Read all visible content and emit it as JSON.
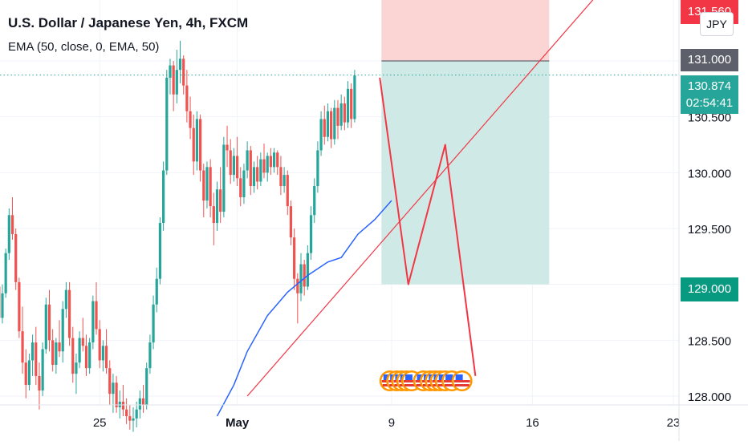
{
  "header": {
    "title": "U.S. Dollar / Japanese Yen, 4h, FXCM",
    "indicator": "EMA (50, close, 0, EMA, 50)",
    "currency_button": "JPY"
  },
  "price_tags": {
    "stop_loss": "131.560",
    "entry": "131.000",
    "current_price": "130.874",
    "countdown": "02:54:41",
    "target": "129.000"
  },
  "colors": {
    "up": "#26a69a",
    "down": "#ef5350",
    "ema": "#2962ff",
    "trendline": "#f23645",
    "projection": "#f23645",
    "stop_zone": "#fbd5d3",
    "target_zone": "#cfeae6",
    "current_line": "#26a69a",
    "entry_tag": "#5d606b",
    "flag_icon": "us-flag-event-icon"
  },
  "chart_data": {
    "type": "candlestick",
    "symbol": "U.S. Dollar / Japanese Yen",
    "interval": "4h",
    "ylim": [
      127.9,
      131.9
    ],
    "y_ticks": [
      "128.000",
      "128.500",
      "129.000",
      "129.500",
      "130.000",
      "130.500",
      "131.000"
    ],
    "x_ticks": [
      "25",
      "May",
      "9",
      "16",
      "23"
    ],
    "x_tick_index": [
      40,
      81,
      127,
      169,
      211
    ],
    "candles": [
      [
        129.03,
        129.28,
        128.95,
        129.15
      ],
      [
        129.15,
        129.42,
        129.08,
        129.35
      ],
      [
        129.35,
        129.48,
        128.98,
        129.05
      ],
      [
        129.05,
        129.18,
        128.52,
        128.62
      ],
      [
        128.62,
        128.7,
        128.3,
        128.4
      ],
      [
        128.4,
        128.52,
        128.1,
        128.2
      ],
      [
        128.2,
        128.62,
        128.15,
        128.55
      ],
      [
        128.55,
        128.88,
        128.48,
        128.8
      ],
      [
        128.8,
        129.1,
        128.75,
        129.02
      ],
      [
        129.02,
        129.25,
        128.92,
        128.98
      ],
      [
        128.98,
        129.03,
        128.62,
        128.7
      ],
      [
        128.7,
        129.0,
        128.65,
        128.92
      ],
      [
        128.92,
        129.32,
        128.88,
        129.28
      ],
      [
        129.28,
        129.68,
        129.22,
        129.62
      ],
      [
        129.62,
        129.78,
        129.4,
        129.45
      ],
      [
        129.45,
        129.5,
        128.95,
        129.02
      ],
      [
        129.02,
        129.06,
        128.52,
        128.58
      ],
      [
        128.58,
        128.8,
        128.2,
        128.3
      ],
      [
        128.3,
        128.42,
        127.98,
        128.1
      ],
      [
        128.1,
        128.38,
        128.05,
        128.32
      ],
      [
        128.32,
        128.55,
        128.18,
        128.48
      ],
      [
        128.48,
        128.62,
        128.1,
        128.18
      ],
      [
        128.18,
        128.3,
        127.88,
        128.05
      ],
      [
        128.05,
        128.48,
        128.0,
        128.42
      ],
      [
        128.42,
        128.88,
        128.38,
        128.82
      ],
      [
        128.82,
        128.95,
        128.4,
        128.5
      ],
      [
        128.5,
        128.6,
        128.22,
        128.28
      ],
      [
        128.28,
        128.52,
        128.2,
        128.48
      ],
      [
        128.48,
        128.68,
        128.35,
        128.4
      ],
      [
        128.4,
        128.85,
        128.3,
        128.78
      ],
      [
        128.78,
        129.02,
        128.7,
        128.95
      ],
      [
        128.95,
        129.02,
        128.45,
        128.52
      ],
      [
        128.52,
        128.62,
        128.12,
        128.2
      ],
      [
        128.2,
        128.38,
        128.02,
        128.3
      ],
      [
        128.3,
        128.58,
        128.25,
        128.52
      ],
      [
        128.52,
        128.7,
        128.4,
        128.45
      ],
      [
        128.45,
        128.55,
        128.18,
        128.25
      ],
      [
        128.25,
        128.52,
        128.2,
        128.48
      ],
      [
        128.48,
        128.9,
        128.42,
        128.85
      ],
      [
        128.85,
        129.02,
        128.55,
        128.6
      ],
      [
        128.6,
        128.68,
        128.25,
        128.32
      ],
      [
        128.32,
        128.5,
        128.22,
        128.45
      ],
      [
        128.45,
        128.6,
        128.2,
        128.25
      ],
      [
        128.25,
        128.32,
        127.92,
        128.02
      ],
      [
        128.02,
        128.2,
        127.85,
        128.12
      ],
      [
        128.12,
        128.18,
        127.85,
        127.9
      ],
      [
        127.9,
        128.05,
        127.8,
        127.95
      ],
      [
        127.95,
        128.1,
        127.82,
        127.88
      ],
      [
        127.88,
        127.98,
        127.75,
        127.82
      ],
      [
        127.82,
        127.92,
        127.7,
        127.78
      ],
      [
        127.78,
        127.9,
        127.68,
        127.8
      ],
      [
        127.8,
        127.95,
        127.72,
        127.88
      ],
      [
        127.88,
        128.05,
        127.8,
        127.98
      ],
      [
        127.98,
        128.1,
        127.85,
        127.92
      ],
      [
        127.92,
        128.3,
        127.88,
        128.25
      ],
      [
        128.25,
        128.55,
        128.2,
        128.48
      ],
      [
        128.48,
        128.9,
        128.42,
        128.82
      ],
      [
        128.82,
        129.15,
        128.75,
        129.05
      ],
      [
        129.05,
        129.6,
        129.0,
        129.55
      ],
      [
        129.55,
        130.1,
        129.48,
        130.02
      ],
      [
        130.02,
        130.92,
        129.98,
        130.85
      ],
      [
        130.85,
        131.02,
        130.7,
        130.96
      ],
      [
        130.96,
        131.0,
        130.55,
        130.7
      ],
      [
        130.7,
        131.1,
        130.62,
        130.92
      ],
      [
        130.92,
        131.18,
        130.8,
        131.02
      ],
      [
        131.02,
        131.05,
        130.7,
        130.78
      ],
      [
        130.78,
        130.92,
        130.45,
        130.55
      ],
      [
        130.55,
        130.68,
        130.3,
        130.4
      ],
      [
        130.4,
        130.52,
        129.98,
        130.1
      ],
      [
        130.1,
        130.55,
        130.02,
        130.48
      ],
      [
        130.48,
        130.52,
        129.92,
        130.02
      ],
      [
        130.02,
        130.08,
        129.6,
        129.75
      ],
      [
        129.75,
        130.1,
        129.68,
        130.05
      ],
      [
        130.05,
        130.12,
        129.6,
        129.7
      ],
      [
        129.7,
        129.82,
        129.35,
        129.55
      ],
      [
        129.55,
        129.92,
        129.48,
        129.85
      ],
      [
        129.85,
        130.05,
        129.55,
        129.65
      ],
      [
        129.65,
        130.32,
        129.6,
        130.25
      ],
      [
        130.25,
        130.42,
        130.05,
        130.2
      ],
      [
        130.2,
        130.3,
        129.9,
        129.98
      ],
      [
        129.98,
        130.22,
        129.92,
        130.15
      ],
      [
        130.15,
        130.32,
        129.88,
        129.95
      ],
      [
        129.95,
        130.05,
        129.7,
        129.78
      ],
      [
        129.78,
        130.08,
        129.72,
        130.02
      ],
      [
        130.02,
        130.28,
        129.95,
        130.2
      ],
      [
        130.2,
        130.24,
        129.8,
        129.88
      ],
      [
        129.88,
        130.1,
        129.82,
        130.05
      ],
      [
        130.05,
        130.15,
        129.85,
        129.92
      ],
      [
        129.92,
        130.18,
        129.88,
        130.12
      ],
      [
        130.12,
        130.26,
        129.95,
        130.0
      ],
      [
        130.0,
        130.18,
        129.92,
        130.15
      ],
      [
        130.15,
        130.22,
        129.98,
        130.05
      ],
      [
        130.05,
        130.22,
        130.0,
        130.18
      ],
      [
        130.18,
        130.2,
        129.98,
        130.05
      ],
      [
        130.05,
        130.15,
        129.8,
        129.88
      ],
      [
        129.88,
        130.05,
        129.82,
        129.98
      ],
      [
        129.98,
        130.02,
        129.62,
        129.7
      ],
      [
        129.7,
        129.75,
        129.35,
        129.42
      ],
      [
        129.42,
        129.5,
        128.95,
        129.05
      ],
      [
        129.05,
        129.1,
        128.65,
        128.92
      ],
      [
        128.92,
        129.28,
        128.85,
        129.18
      ],
      [
        129.18,
        129.22,
        128.9,
        128.98
      ],
      [
        128.98,
        129.35,
        128.95,
        129.28
      ],
      [
        129.28,
        129.7,
        129.22,
        129.62
      ],
      [
        129.62,
        129.95,
        129.55,
        129.88
      ],
      [
        129.88,
        130.28,
        129.82,
        130.2
      ],
      [
        130.2,
        130.55,
        130.15,
        130.48
      ],
      [
        130.48,
        130.6,
        130.25,
        130.32
      ],
      [
        130.32,
        130.62,
        130.28,
        130.55
      ],
      [
        130.55,
        130.58,
        130.22,
        130.3
      ],
      [
        130.3,
        130.65,
        130.25,
        130.58
      ],
      [
        130.58,
        130.65,
        130.3,
        130.42
      ],
      [
        130.42,
        130.7,
        130.38,
        130.62
      ],
      [
        130.62,
        130.68,
        130.38,
        130.45
      ],
      [
        130.45,
        130.82,
        130.4,
        130.75
      ],
      [
        130.75,
        130.8,
        130.4,
        130.48
      ],
      [
        130.48,
        130.92,
        130.45,
        130.87
      ]
    ],
    "ema": [
      [
        15,
        127.82
      ],
      [
        20,
        128.1
      ],
      [
        24,
        128.4
      ],
      [
        30,
        128.72
      ],
      [
        36,
        128.93
      ],
      [
        42,
        129.08
      ],
      [
        48,
        129.2
      ],
      [
        52,
        129.24
      ],
      [
        57,
        129.45
      ],
      [
        62,
        129.58
      ],
      [
        67,
        129.75
      ]
    ],
    "projection_path": [
      [
        123.5,
        130.85
      ],
      [
        132,
        129.0
      ],
      [
        143,
        130.25
      ],
      [
        152,
        128.18
      ]
    ],
    "trendline": [
      [
        84,
        128.0
      ],
      [
        206,
        132.2
      ]
    ],
    "position": {
      "entry": 131.0,
      "stop": 131.56,
      "target": 129.0,
      "start_index": 124,
      "end_index": 174
    },
    "current_price": 130.874,
    "events": [
      126.5,
      128.5,
      130,
      131.5,
      133,
      136.5,
      138.5,
      140,
      141.5,
      143,
      145,
      148
    ],
    "bar_x_offset": -43
  }
}
